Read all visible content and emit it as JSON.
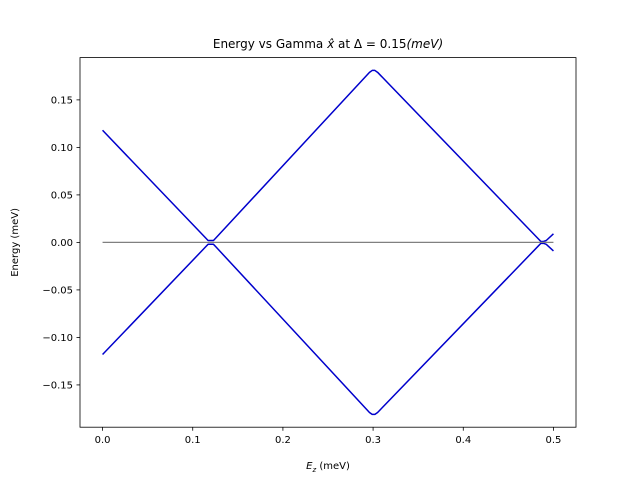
{
  "chart_data": {
    "type": "line",
    "title_parts": {
      "prefix": "Energy vs Gamma ",
      "xhat": "x̂",
      "middle": " at ",
      "delta": "Δ",
      "equals_value": " = 0.15",
      "unit": "(meV)"
    },
    "xlabel_var": "E",
    "xlabel_sub": "z",
    "xlabel_unit": " (meV)",
    "ylabel": "Energy (meV)",
    "xlim": [
      -0.025,
      0.525
    ],
    "ylim": [
      -0.1945,
      0.1945
    ],
    "xticks": [
      0.0,
      0.1,
      0.2,
      0.3,
      0.4,
      0.5
    ],
    "xtick_labels": [
      "0.0",
      "0.1",
      "0.2",
      "0.3",
      "0.4",
      "0.5"
    ],
    "yticks": [
      -0.15,
      -0.1,
      -0.05,
      0.0,
      0.05,
      0.1,
      0.15
    ],
    "ytick_labels": [
      "−0.15",
      "−0.10",
      "−0.05",
      "0.00",
      "0.05",
      "0.10",
      "0.15"
    ],
    "grid": false,
    "colors": {
      "band": "#0000cc",
      "zero": "#808080"
    },
    "series": [
      {
        "key": "upper",
        "x": [
          0.0,
          0.114,
          0.117,
          0.12,
          0.123,
          0.126,
          0.296,
          0.299,
          0.302,
          0.305,
          0.483,
          0.486,
          0.489,
          0.492,
          0.5
        ],
        "y": [
          0.118,
          0.005,
          0.002,
          0.002,
          0.002,
          0.005,
          0.179,
          0.181,
          0.181,
          0.179,
          0.004,
          0.001,
          0.001,
          0.002,
          0.009
        ]
      },
      {
        "key": "lower",
        "x": [
          0.0,
          0.114,
          0.117,
          0.12,
          0.123,
          0.126,
          0.296,
          0.299,
          0.302,
          0.305,
          0.483,
          0.486,
          0.489,
          0.492,
          0.5
        ],
        "y": [
          -0.118,
          -0.005,
          -0.002,
          -0.002,
          -0.002,
          -0.005,
          -0.179,
          -0.181,
          -0.181,
          -0.179,
          -0.004,
          -0.001,
          -0.001,
          -0.002,
          -0.009
        ]
      },
      {
        "key": "zero",
        "x": [
          0.0,
          0.5
        ],
        "y": [
          0.0,
          0.0
        ]
      }
    ]
  }
}
